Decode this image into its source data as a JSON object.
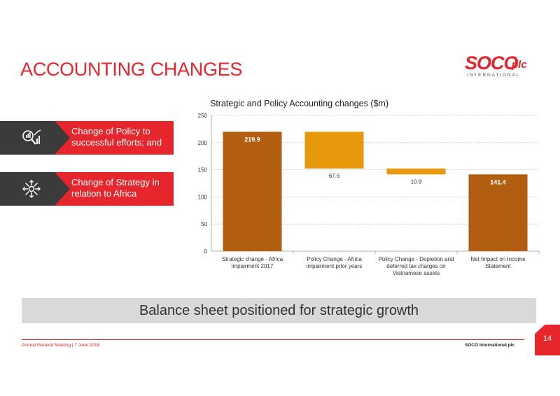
{
  "title": "ACCOUNTING CHANGES",
  "logo": {
    "main": "SOCO",
    "suffix": "plc",
    "tagline": "INTERNATIONAL"
  },
  "callouts": [
    {
      "text": "Change of Policy to successful efforts; and",
      "icon": "magnifier-chart-icon"
    },
    {
      "text": "Change of Strategy in relation to Africa",
      "icon": "arrows-outward-icon"
    }
  ],
  "colors": {
    "accent": "#e5262c",
    "total_bar": "#b25e10",
    "delta_bar": "#e8980c",
    "dark": "#3b3b3b"
  },
  "chart_data": {
    "type": "bar",
    "subtype": "waterfall",
    "title": "Strategic and Policy Accounting changes ($m)",
    "xlabel": "",
    "ylabel": "",
    "ylim": [
      0,
      250
    ],
    "yticks": [
      "0",
      "50",
      "100",
      "150",
      "200",
      "250"
    ],
    "grid": true,
    "categories": [
      [
        "Strategic change - Africa",
        "impairment 2017"
      ],
      [
        "Policy Change - Africa",
        "impairment prior years"
      ],
      [
        "Policy Change - Depletion and",
        "deferred tax charges on",
        "Vietnamese assets"
      ],
      [
        "Net Impact on Income",
        "Statement"
      ]
    ],
    "bars": [
      {
        "kind": "total",
        "start": 0,
        "end": 219.9,
        "label": "219.9"
      },
      {
        "kind": "decrease",
        "start": 219.9,
        "end": 152.3,
        "label": "67.6"
      },
      {
        "kind": "decrease",
        "start": 152.3,
        "end": 141.4,
        "label": "10.9"
      },
      {
        "kind": "total",
        "start": 0,
        "end": 141.4,
        "label": "141.4"
      }
    ]
  },
  "banner": "Balance sheet positioned for strategic growth",
  "footer": {
    "left": "Annual General Meeting  |  7 June 2018",
    "right": "SOCO International plc"
  },
  "page_number": "14"
}
